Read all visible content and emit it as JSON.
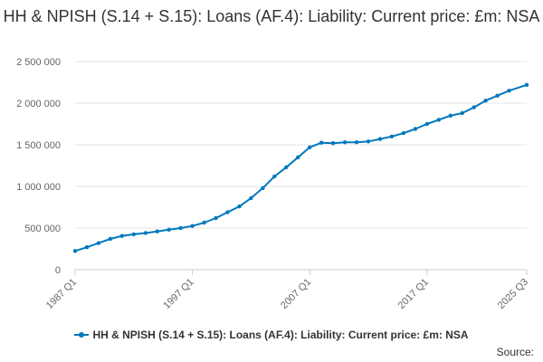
{
  "title": "HH & NPISH (S.14 + S.15): Loans (AF.4): Liability: Current price: £m: NSA",
  "source_label": "Source:",
  "colors": {
    "series": "#0078bd",
    "grid": "#e6e6e6",
    "axis": "#cccccc"
  },
  "chart_data": {
    "type": "line",
    "title": "HH & NPISH (S.14 + S.15): Loans (AF.4): Liability: Current price: £m: NSA",
    "xlabel": "",
    "ylabel": "",
    "ylim": [
      0,
      2500000
    ],
    "y_ticks": [
      0,
      500000,
      1000000,
      1500000,
      2000000,
      2500000
    ],
    "y_tick_labels": [
      "0",
      "500 000",
      "1 000 000",
      "1 500 000",
      "2 000 000",
      "2 500 000"
    ],
    "x_tick_labels": [
      "1987 Q1",
      "1997 Q1",
      "2007 Q1",
      "2017 Q1",
      "2025 Q3"
    ],
    "legend": "bottom-center",
    "grid": true,
    "series": [
      {
        "name": "HH & NPISH (S.14 + S.15): Loans (AF.4): Liability: Current price: £m: NSA",
        "points": [
          [
            "1987 Q1",
            225000
          ],
          [
            "1988 Q1",
            270000
          ],
          [
            "1989 Q1",
            320000
          ],
          [
            "1990 Q1",
            370000
          ],
          [
            "1991 Q1",
            405000
          ],
          [
            "1992 Q1",
            425000
          ],
          [
            "1993 Q1",
            440000
          ],
          [
            "1994 Q1",
            460000
          ],
          [
            "1995 Q1",
            480000
          ],
          [
            "1996 Q1",
            500000
          ],
          [
            "1997 Q1",
            525000
          ],
          [
            "1998 Q1",
            565000
          ],
          [
            "1999 Q1",
            620000
          ],
          [
            "2000 Q1",
            690000
          ],
          [
            "2001 Q1",
            760000
          ],
          [
            "2002 Q1",
            860000
          ],
          [
            "2003 Q1",
            980000
          ],
          [
            "2004 Q1",
            1120000
          ],
          [
            "2005 Q1",
            1230000
          ],
          [
            "2006 Q1",
            1350000
          ],
          [
            "2007 Q1",
            1470000
          ],
          [
            "2008 Q1",
            1525000
          ],
          [
            "2009 Q1",
            1520000
          ],
          [
            "2010 Q1",
            1530000
          ],
          [
            "2011 Q1",
            1530000
          ],
          [
            "2012 Q1",
            1540000
          ],
          [
            "2013 Q1",
            1570000
          ],
          [
            "2014 Q1",
            1600000
          ],
          [
            "2015 Q1",
            1640000
          ],
          [
            "2016 Q1",
            1690000
          ],
          [
            "2017 Q1",
            1750000
          ],
          [
            "2018 Q1",
            1800000
          ],
          [
            "2019 Q1",
            1850000
          ],
          [
            "2020 Q1",
            1880000
          ],
          [
            "2021 Q1",
            1950000
          ],
          [
            "2022 Q1",
            2030000
          ],
          [
            "2023 Q1",
            2090000
          ],
          [
            "2024 Q1",
            2150000
          ],
          [
            "2025 Q3",
            2220000
          ]
        ]
      }
    ]
  }
}
